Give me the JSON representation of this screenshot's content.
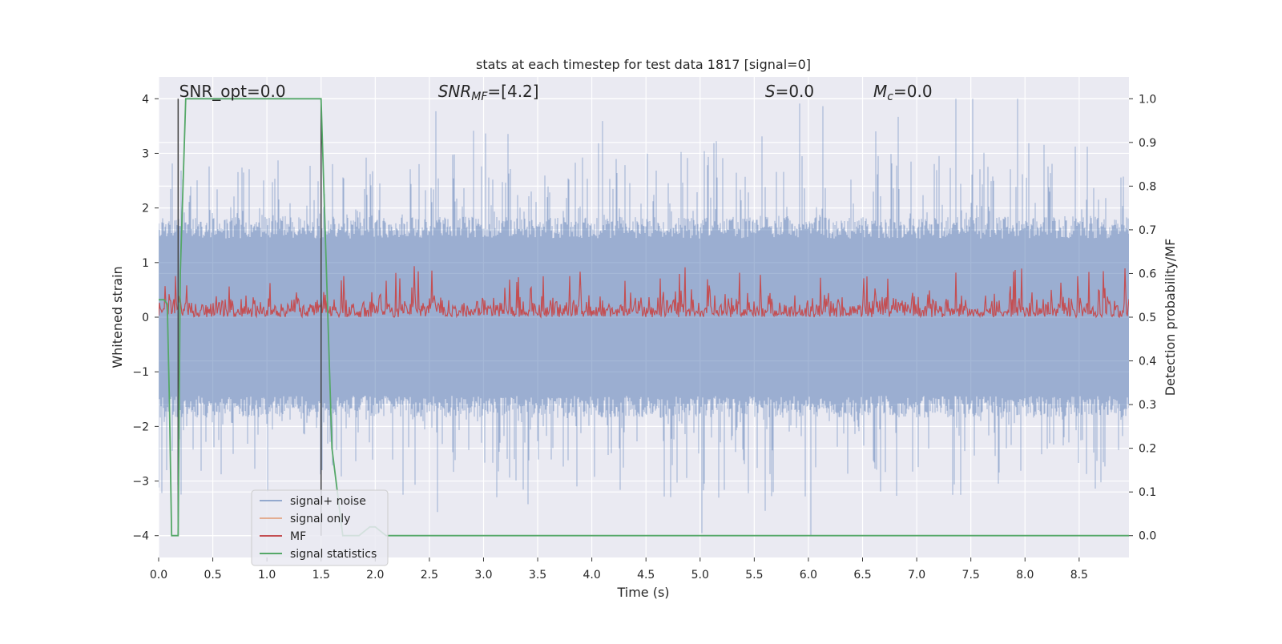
{
  "chart_data": {
    "type": "line",
    "title": "stats at each timestep for test data 1817 [signal=0]",
    "xlabel": "Time (s)",
    "ylabel_left": "Whitened strain",
    "ylabel_right": "Detection probability/MF",
    "xlim": [
      0.0,
      8.96
    ],
    "ylim_left": [
      -4.4,
      4.4
    ],
    "ylim_right": [
      -0.05,
      1.05
    ],
    "grid": true,
    "legend_position": "lower-left",
    "x_ticks": [
      0.0,
      0.5,
      1.0,
      1.5,
      2.0,
      2.5,
      3.0,
      3.5,
      4.0,
      4.5,
      5.0,
      5.5,
      6.0,
      6.5,
      7.0,
      7.5,
      8.0,
      8.5
    ],
    "x_tick_labels": [
      "0.0",
      "0.5",
      "1.0",
      "1.5",
      "2.0",
      "2.5",
      "3.0",
      "3.5",
      "4.0",
      "4.5",
      "5.0",
      "5.5",
      "6.0",
      "6.5",
      "7.0",
      "7.5",
      "8.0",
      "8.5"
    ],
    "y_left_ticks": [
      -4,
      -3,
      -2,
      -1,
      0,
      1,
      2,
      3,
      4
    ],
    "y_left_tick_labels": [
      "−4",
      "−3",
      "−2",
      "−1",
      "0",
      "1",
      "2",
      "3",
      "4"
    ],
    "y_right_ticks": [
      0.0,
      0.1,
      0.2,
      0.3,
      0.4,
      0.5,
      0.6,
      0.7,
      0.8,
      0.9,
      1.0
    ],
    "y_right_tick_labels": [
      "0.0",
      "0.1",
      "0.2",
      "0.3",
      "0.4",
      "0.5",
      "0.6",
      "0.7",
      "0.8",
      "0.9",
      "1.0"
    ],
    "annotations": [
      {
        "text": "SNR_opt=0.0",
        "x": 0.19
      },
      {
        "text": "SNR_MF=[4.2]",
        "x": 2.58
      },
      {
        "text": "S=0.0",
        "x": 5.6
      },
      {
        "text": "M_c=0.0",
        "x": 6.6
      }
    ],
    "vertical_markers": [
      0.18,
      1.5
    ],
    "series": [
      {
        "name": "signal+ noise",
        "axis": "left",
        "color": "#4c72b0",
        "description_values": {
          "x_range": [
            0.0,
            8.96
          ],
          "envelope_min": -4.0,
          "envelope_max": 4.0,
          "typical_abs": 1.6
        }
      },
      {
        "name": "signal only",
        "axis": "left",
        "color": "#dd8452",
        "values": []
      },
      {
        "name": "MF",
        "axis": "right",
        "color": "#c44e52",
        "description_values": {
          "x_range": [
            0.0,
            8.96
          ],
          "baseline": 0.5,
          "typical_max": 0.57,
          "peak": 0.62
        }
      },
      {
        "name": "signal statistics",
        "axis": "right",
        "color": "#55a868",
        "x": [
          0.0,
          0.05,
          0.08,
          0.1,
          0.12,
          0.18,
          0.2,
          0.25,
          1.5,
          1.55,
          1.6,
          1.7,
          1.85,
          1.95,
          2.0,
          2.1,
          8.96
        ],
        "values": [
          0.54,
          0.54,
          0.53,
          0.3,
          0.0,
          0.0,
          0.6,
          1.0,
          1.0,
          0.6,
          0.2,
          0.0,
          0.0,
          0.02,
          0.02,
          0.0,
          0.0
        ]
      }
    ]
  }
}
